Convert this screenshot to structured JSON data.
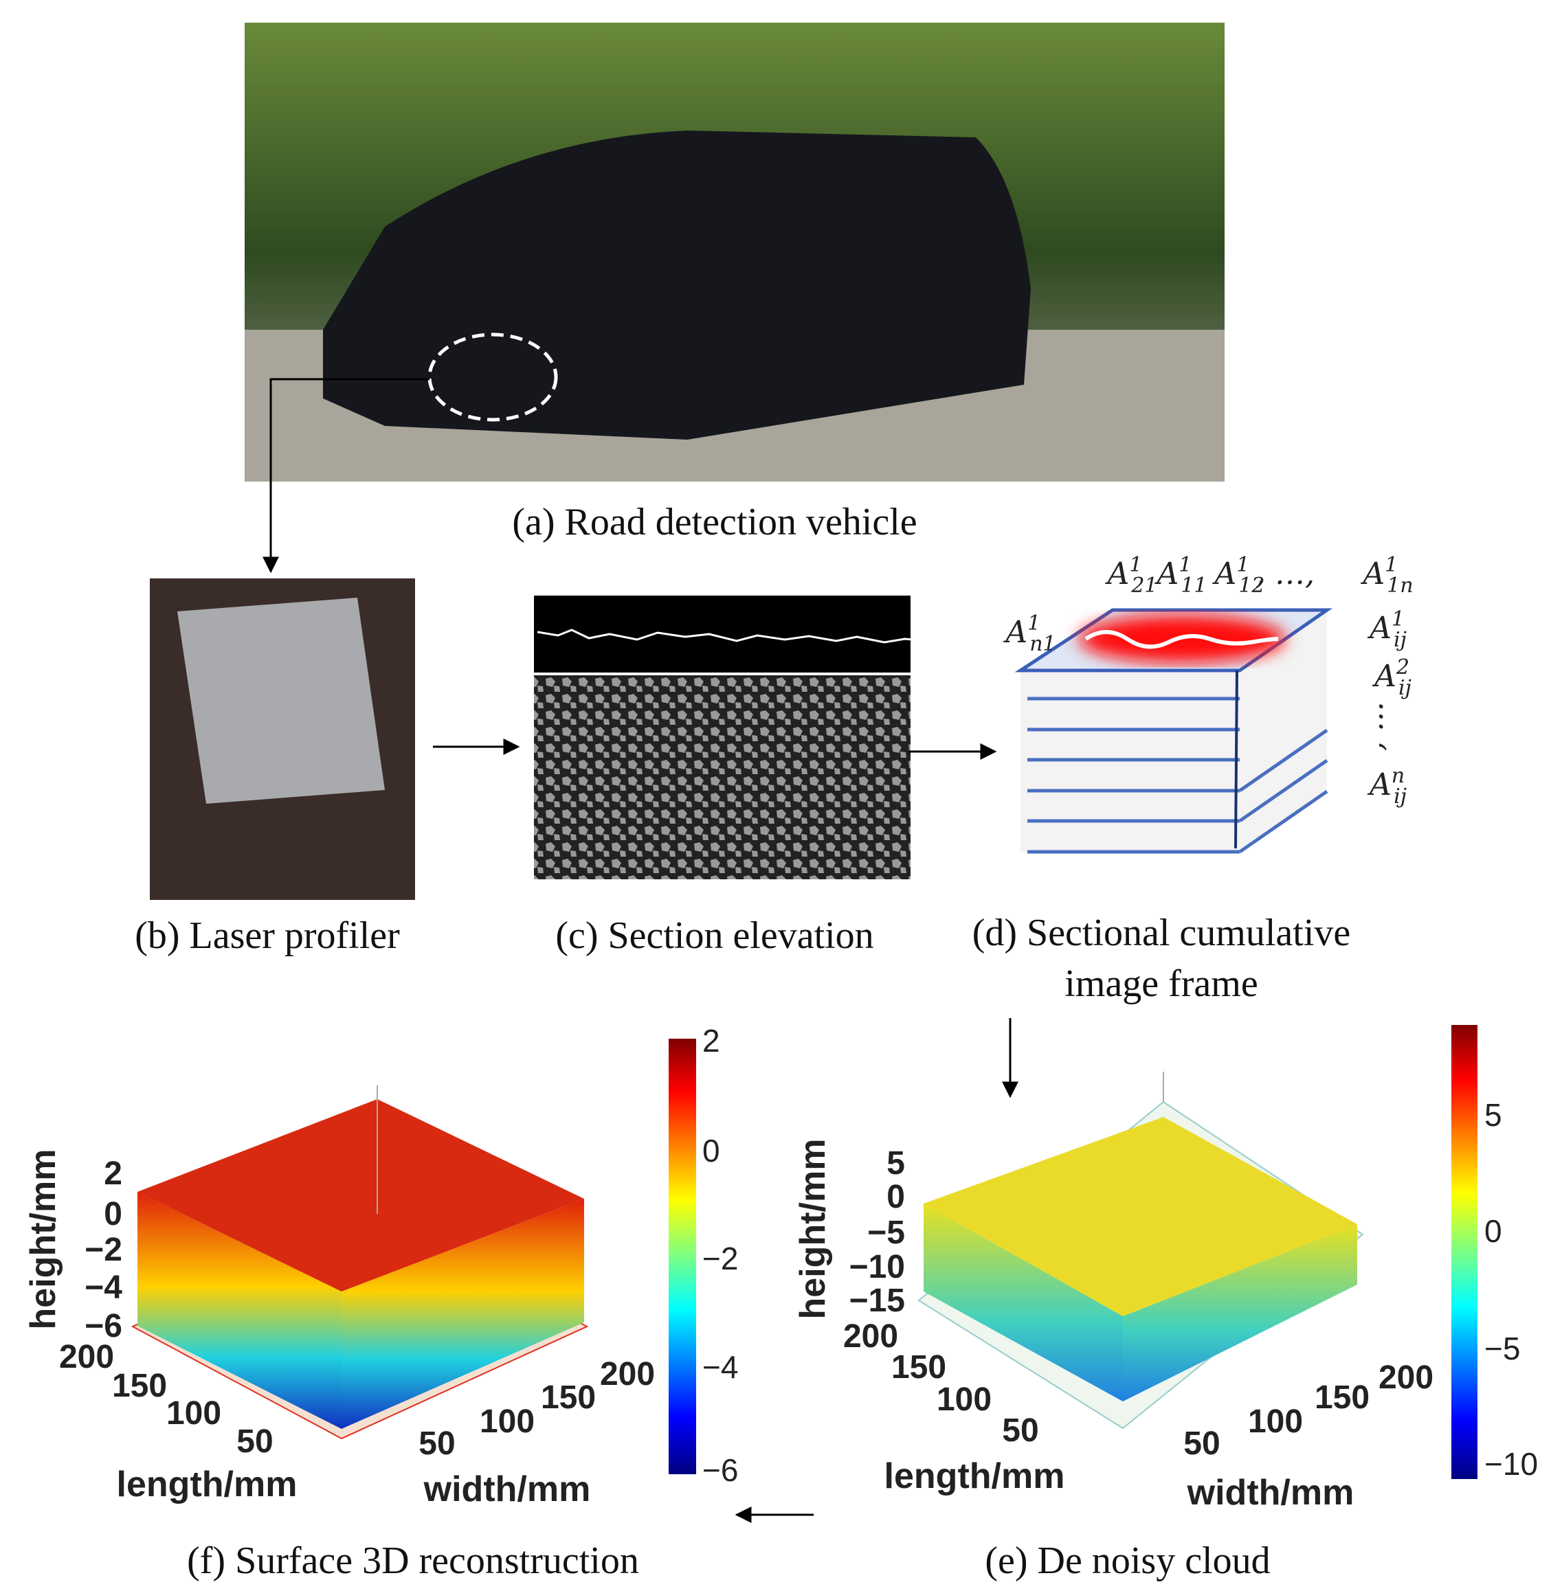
{
  "panel_a": {
    "caption": "(a) Road detection vehicle"
  },
  "panel_b": {
    "caption": "(b) Laser profiler"
  },
  "panel_c": {
    "caption": "(c) Section elevation"
  },
  "panel_d": {
    "caption": [
      "(d) Sectional cumulative",
      "image frame"
    ],
    "labels": [
      {
        "base": "A",
        "sup": "1",
        "sub": "21"
      },
      {
        "base": "A",
        "sup": "1",
        "sub": "11"
      },
      {
        "base": "A",
        "sup": "1",
        "sub": "12"
      },
      {
        "base": "A",
        "sup": "1",
        "sub": "1n"
      },
      {
        "base": "A",
        "sup": "1",
        "sub": "n1"
      },
      {
        "base": "A",
        "sup": "1",
        "sub": "ij"
      },
      {
        "base": "A",
        "sup": "2",
        "sub": "ij"
      },
      {
        "base": "A",
        "sup": "n",
        "sub": "ij"
      }
    ],
    "separator": ", …,",
    "vertical_ellipsis": ", …"
  },
  "panel_e": {
    "caption": "(e) De noisy cloud",
    "height_label": "height/mm",
    "length_label": "length/mm",
    "width_label": "width/mm",
    "height_ticks": [
      "5",
      "0",
      "−5",
      "−10",
      "−15"
    ],
    "length_ticks": [
      "200",
      "150",
      "100",
      "50"
    ],
    "width_ticks": [
      "50",
      "100",
      "150",
      "200"
    ],
    "colorbar_ticks": [
      "5",
      "0",
      "−5",
      "−10"
    ]
  },
  "panel_f": {
    "caption": "(f) Surface 3D reconstruction",
    "height_label": "height/mm",
    "length_label": "length/mm",
    "width_label": "width/mm",
    "height_ticks": [
      "2",
      "0",
      "−2",
      "−4",
      "−6"
    ],
    "length_ticks": [
      "200",
      "150",
      "100",
      "50"
    ],
    "width_ticks": [
      "50",
      "100",
      "150",
      "200"
    ],
    "colorbar_ticks": [
      "2",
      "0",
      "−2",
      "−4",
      "−6"
    ]
  }
}
